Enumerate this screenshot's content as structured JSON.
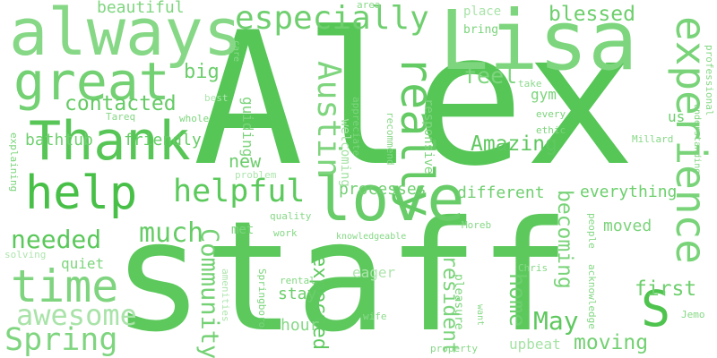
{
  "words": [
    {
      "text": "staff",
      "shade": "#5dc95d"
    },
    {
      "text": "Alex",
      "shade": "#56c656"
    },
    {
      "text": "Lisa",
      "shade": "#7dd67d"
    },
    {
      "text": "always",
      "shade": "#86d886"
    },
    {
      "text": "great",
      "shade": "#73d173"
    },
    {
      "text": "Thank",
      "shade": "#57c657"
    },
    {
      "text": "help",
      "shade": "#48c048"
    },
    {
      "text": "love",
      "shade": "#68cc68"
    },
    {
      "text": "time",
      "shade": "#7fd47f"
    },
    {
      "text": "helpful",
      "shade": "#5bc95b"
    },
    {
      "text": "especially",
      "shade": "#6fcf6f"
    },
    {
      "text": "experience",
      "shade": "#79d379"
    },
    {
      "text": "really",
      "shade": "#64cb64"
    },
    {
      "text": "Austin",
      "shade": "#7ed57e"
    },
    {
      "text": "Amazing",
      "shade": "#5ec85e"
    },
    {
      "text": "needed",
      "shade": "#5ac85a"
    },
    {
      "text": "much",
      "shade": "#66cc66"
    },
    {
      "text": "awesome",
      "shade": "#a9e3a9"
    },
    {
      "text": "Spring",
      "shade": "#7fd57f"
    },
    {
      "text": "Community",
      "shade": "#74d174"
    },
    {
      "text": "S",
      "shade": "#4ec34e"
    },
    {
      "text": "May",
      "shade": "#5ec85e"
    },
    {
      "text": "moving",
      "shade": "#72d072"
    },
    {
      "text": "first",
      "shade": "#6ecf6e"
    },
    {
      "text": "becoming",
      "shade": "#79d379"
    },
    {
      "text": "home",
      "shade": "#6dcf6d"
    },
    {
      "text": "resident",
      "shade": "#7bd47b"
    },
    {
      "text": "expected",
      "shade": "#5fc95f"
    },
    {
      "text": "contacted",
      "shade": "#64cb64"
    },
    {
      "text": "feel",
      "shade": "#7dd57d"
    },
    {
      "text": "blessed",
      "shade": "#6ccf6c"
    },
    {
      "text": "beautiful",
      "shade": "#7ed57e"
    },
    {
      "text": "big",
      "shade": "#6bce6b"
    },
    {
      "text": "new",
      "shade": "#6ccd6c"
    },
    {
      "text": "friendly",
      "shade": "#66cc66"
    },
    {
      "text": "bathtub",
      "shade": "#6fcf6f"
    },
    {
      "text": "processes",
      "shade": "#72d072"
    },
    {
      "text": "different",
      "shade": "#6fcf6f"
    },
    {
      "text": "everything",
      "shade": "#6dcf6d"
    },
    {
      "text": "moved",
      "shade": "#7ad37a"
    },
    {
      "text": "stay",
      "shade": "#6bce6b"
    },
    {
      "text": "hour",
      "shade": "#86d886"
    },
    {
      "text": "quiet",
      "shade": "#7dd57d"
    },
    {
      "text": "eager",
      "shade": "#aee5ae"
    },
    {
      "text": "upbeat",
      "shade": "#a4e2a4"
    },
    {
      "text": "gym",
      "shade": "#7bd47b"
    },
    {
      "text": "place",
      "shade": "#a9e3a9"
    },
    {
      "text": "bring",
      "shade": "#7bd47b"
    },
    {
      "text": "area",
      "shade": "#8bda8b"
    },
    {
      "text": "us",
      "shade": "#6bce6b"
    },
    {
      "text": "guiding",
      "shade": "#7bd47b"
    },
    {
      "text": "welcoming",
      "shade": "#a4e2a4"
    },
    {
      "text": "appreciate",
      "shade": "#7dd57d"
    },
    {
      "text": "recommend",
      "shade": "#86d886"
    },
    {
      "text": "responsive",
      "shade": "#7ed57e"
    },
    {
      "text": "take",
      "shade": "#8bda8b"
    },
    {
      "text": "every",
      "shade": "#7bd47b"
    },
    {
      "text": "ethic",
      "shade": "#7bd47b"
    },
    {
      "text": "Millard",
      "shade": "#86d886"
    },
    {
      "text": "understanding",
      "shade": "#7dd57d"
    },
    {
      "text": "professional",
      "shade": "#86d886"
    },
    {
      "text": "Tareq",
      "shade": "#86d886"
    },
    {
      "text": "whole",
      "shade": "#7dd57d"
    },
    {
      "text": "best",
      "shade": "#aee5ae"
    },
    {
      "text": "care",
      "shade": "#8bda8b"
    },
    {
      "text": "explaining",
      "shade": "#7bd47b"
    },
    {
      "text": "problem",
      "shade": "#aee5ae"
    },
    {
      "text": "met",
      "shade": "#7bd47b"
    },
    {
      "text": "quality",
      "shade": "#86d886"
    },
    {
      "text": "work",
      "shade": "#86d886"
    },
    {
      "text": "knowledgeable",
      "shade": "#86d886"
    },
    {
      "text": "Moreb",
      "shade": "#86d886"
    },
    {
      "text": "people",
      "shade": "#86d886"
    },
    {
      "text": "solving",
      "shade": "#aee5ae"
    },
    {
      "text": "amenities",
      "shade": "#aee5ae"
    },
    {
      "text": "Springboro",
      "shade": "#7bd47b"
    },
    {
      "text": "rental",
      "shade": "#86d886"
    },
    {
      "text": "wife",
      "shade": "#8bda8b"
    },
    {
      "text": "want",
      "shade": "#86d886"
    },
    {
      "text": "pleasure",
      "shade": "#7bd47b"
    },
    {
      "text": "Chris",
      "shade": "#86d886"
    },
    {
      "text": "acknowledge",
      "shade": "#86d886"
    },
    {
      "text": "Jemo",
      "shade": "#86d886"
    },
    {
      "text": "property",
      "shade": "#86d886"
    }
  ]
}
